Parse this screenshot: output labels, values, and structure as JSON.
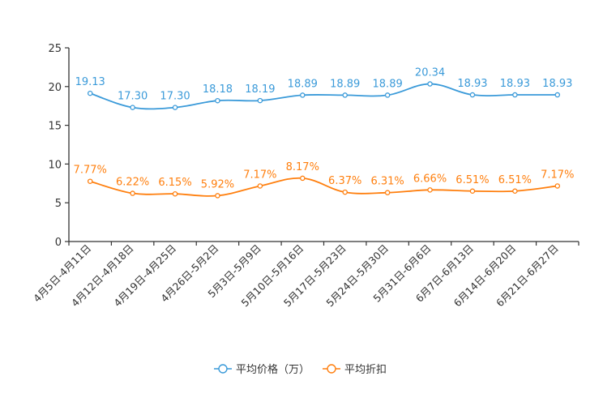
{
  "colors": {
    "price": "#3a9ad9",
    "discount": "#ff7f0e",
    "axis": "#333333",
    "text": "#333333",
    "legend_text": "#333333"
  },
  "chart_data": {
    "type": "line",
    "categories": [
      "4月5日-4月11日",
      "4月12日-4月18日",
      "4月19日-4月25日",
      "4月26日-5月2日",
      "5月3日-5月9日",
      "5月10日-5月16日",
      "5月17日-5月23日",
      "5月24日-5月30日",
      "5月31日-6月6日",
      "6月7日-6月13日",
      "6月14日-6月20日",
      "6月21日-6月27日"
    ],
    "ylim": [
      0,
      25
    ],
    "yticks": [
      0,
      5,
      10,
      15,
      20,
      25
    ],
    "ytick_labels": [
      "0",
      "5",
      "10",
      "15",
      "20",
      "25"
    ],
    "series": [
      {
        "name": "平均价格（万）",
        "values": [
          19.13,
          17.3,
          17.3,
          18.18,
          18.19,
          18.89,
          18.89,
          18.89,
          20.34,
          18.93,
          18.93,
          18.93
        ],
        "labels": [
          "19.13",
          "17.30",
          "17.30",
          "18.18",
          "18.19",
          "18.89",
          "18.89",
          "18.89",
          "20.34",
          "18.93",
          "18.93",
          "18.93"
        ]
      },
      {
        "name": "平均折扣",
        "values": [
          7.77,
          6.22,
          6.15,
          5.92,
          7.17,
          8.17,
          6.37,
          6.31,
          6.66,
          6.51,
          6.51,
          7.17
        ],
        "labels": [
          "7.77%",
          "6.22%",
          "6.15%",
          "5.92%",
          "7.17%",
          "8.17%",
          "6.37%",
          "6.31%",
          "6.66%",
          "6.51%",
          "6.51%",
          "7.17%"
        ]
      }
    ],
    "legend_position": "bottom-center",
    "grid": false
  }
}
